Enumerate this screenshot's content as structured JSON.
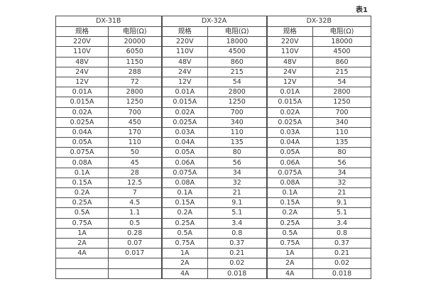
{
  "page": {
    "table_caption": "表1",
    "background_color": "#ffffff",
    "border_color": "#4d4d4d",
    "text_color": "#333333"
  },
  "table": {
    "groups": [
      {
        "name": "DX-31B",
        "spec_header": "规格",
        "resistance_header": "电阻(Ω)"
      },
      {
        "name": "DX-32A",
        "spec_header": "规格",
        "resistance_header": "电阻(Ω)"
      },
      {
        "name": "DX-32B",
        "spec_header": "规格",
        "resistance_header": "电阻(Ω)"
      }
    ],
    "rows": [
      [
        "220V",
        "20000",
        "220V",
        "18000",
        "220V",
        "18000"
      ],
      [
        "110V",
        "6050",
        "110V",
        "4500",
        "110V",
        "4500"
      ],
      [
        "48V",
        "1150",
        "48V",
        "860",
        "48V",
        "860"
      ],
      [
        "24V",
        "288",
        "24V",
        "215",
        "24V",
        "215"
      ],
      [
        "12V",
        "72",
        "12V",
        "54",
        "12V",
        "54"
      ],
      [
        "0.01A",
        "2800",
        "0.01A",
        "2800",
        "0.01A",
        "2800"
      ],
      [
        "0.015A",
        "1250",
        "0.015A",
        "1250",
        "0.015A",
        "1250"
      ],
      [
        "0.02A",
        "700",
        "0.02A",
        "700",
        "0.02A",
        "700"
      ],
      [
        "0.025A",
        "450",
        "0.025A",
        "340",
        "0.025A",
        "340"
      ],
      [
        "0.04A",
        "170",
        "0.03A",
        "110",
        "0.03A",
        "110"
      ],
      [
        "0.05A",
        "110",
        "0.04A",
        "135",
        "0.04A",
        "135"
      ],
      [
        "0.075A",
        "50",
        "0.05A",
        "80",
        "0.05A",
        "80"
      ],
      [
        "0.08A",
        "45",
        "0.06A",
        "56",
        "0.06A",
        "56"
      ],
      [
        "0.1A",
        "28",
        "0.075A",
        "34",
        "0.075A",
        "34"
      ],
      [
        "0.15A",
        "12.5",
        "0.08A",
        "32",
        "0.08A",
        "32"
      ],
      [
        "0.2A",
        "7",
        "0.1A",
        "21",
        "0.1A",
        "21"
      ],
      [
        "0.25A",
        "4.5",
        "0.15A",
        "9.1",
        "0.15A",
        "9.1"
      ],
      [
        "0.5A",
        "1.1",
        "0.2A",
        "5.1",
        "0.2A",
        "5.1"
      ],
      [
        "0.75A",
        "0.5",
        "0.25A",
        "3.4",
        "0.25A",
        "3.4"
      ],
      [
        "1A",
        "0.28",
        "0.5A",
        "0.8",
        "0.5A",
        "0.8"
      ],
      [
        "2A",
        "0.07",
        "0.75A",
        "0.37",
        "0.75A",
        "0.37"
      ],
      [
        "4A",
        "0.017",
        "1A",
        "0.21",
        "1A",
        "0.21"
      ],
      [
        "",
        "",
        "2A",
        "0.02",
        "2A",
        "0.02"
      ],
      [
        "",
        "",
        "4A",
        "0.018",
        "4A",
        "0.018"
      ]
    ]
  }
}
